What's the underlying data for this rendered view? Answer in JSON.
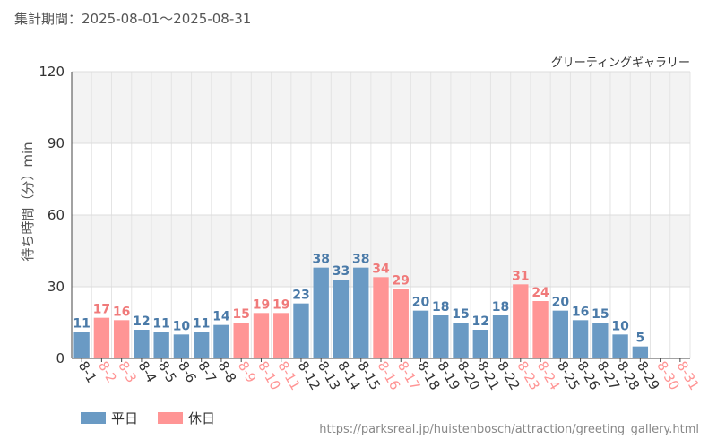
{
  "period_label": "集計期間：2025-08-01～2025-08-31",
  "source_url": "https://parksreal.jp/huistenbosch/attraction/greeting_gallery.html",
  "colors": {
    "weekday": "#6a9ac4",
    "holiday": "#ff9595",
    "weekday_label": "#4a7aa8",
    "holiday_label": "#f07a7a"
  },
  "legend": [
    {
      "label": "平日",
      "type": "weekday"
    },
    {
      "label": "休日",
      "type": "holiday"
    }
  ],
  "chart_data": {
    "type": "bar",
    "title": "グリーティングギャラリー",
    "ylabel": "待ち時間（分）min",
    "xlabel": "",
    "ylim": [
      0,
      120
    ],
    "yticks": [
      0,
      30,
      60,
      90,
      120
    ],
    "grid": true,
    "categories": [
      "8-1",
      "8-2",
      "8-3",
      "8-4",
      "8-5",
      "8-6",
      "8-7",
      "8-8",
      "8-9",
      "8-10",
      "8-11",
      "8-12",
      "8-13",
      "8-14",
      "8-15",
      "8-16",
      "8-17",
      "8-18",
      "8-19",
      "8-20",
      "8-21",
      "8-22",
      "8-23",
      "8-24",
      "8-25",
      "8-26",
      "8-27",
      "8-28",
      "8-29",
      "8-30",
      "8-31"
    ],
    "values": [
      11,
      17,
      16,
      12,
      11,
      10,
      11,
      14,
      15,
      19,
      19,
      23,
      38,
      33,
      38,
      34,
      29,
      20,
      18,
      15,
      12,
      18,
      31,
      24,
      20,
      16,
      15,
      10,
      5,
      null,
      null
    ],
    "day_types": [
      "weekday",
      "holiday",
      "holiday",
      "weekday",
      "weekday",
      "weekday",
      "weekday",
      "weekday",
      "holiday",
      "holiday",
      "holiday",
      "weekday",
      "weekday",
      "weekday",
      "weekday",
      "holiday",
      "holiday",
      "weekday",
      "weekday",
      "weekday",
      "weekday",
      "weekday",
      "holiday",
      "holiday",
      "weekday",
      "weekday",
      "weekday",
      "weekday",
      "weekday",
      "holiday",
      "holiday"
    ]
  }
}
